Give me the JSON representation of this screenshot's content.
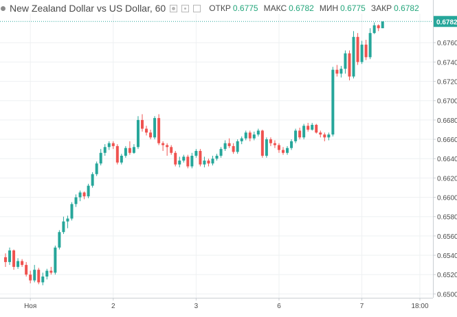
{
  "legend": {
    "symbol": "New Zealand Dollar vs US Dollar, 60",
    "open_label": "ОТКР",
    "open_value": "0.6775",
    "high_label": "МАКС",
    "high_value": "0.6782",
    "low_label": "МИН",
    "low_value": "0.6775",
    "close_label": "ЗАКР",
    "close_value": "0.6782",
    "value_color": "#22a57a"
  },
  "last_price_label": "0.6782",
  "colors": {
    "up": "#26a69a",
    "down": "#ef5350",
    "grid": "#eef0f2",
    "axis_text": "#4a4a4a",
    "price_line": "#26a69a"
  },
  "chart_data": {
    "type": "candlestick",
    "title": "New Zealand Dollar vs US Dollar, 60",
    "ylim": [
      0.6496,
      0.679
    ],
    "yticks": [
      0.65,
      0.652,
      0.654,
      0.656,
      0.658,
      0.66,
      0.662,
      0.664,
      0.666,
      0.668,
      0.67,
      0.672,
      0.674,
      0.676
    ],
    "ytick_labels": [
      "0.6500",
      "0.6520",
      "0.6540",
      "0.6560",
      "0.6580",
      "0.6600",
      "0.6620",
      "0.6640",
      "0.6660",
      "0.6680",
      "0.6700",
      "0.6720",
      "0.6740",
      "0.6760"
    ],
    "x_tick_labels": [
      {
        "index": 6,
        "label": "Ноя"
      },
      {
        "index": 26,
        "label": "2"
      },
      {
        "index": 46,
        "label": "3"
      },
      {
        "index": 66,
        "label": "6"
      },
      {
        "index": 86,
        "label": "7"
      },
      {
        "index": 100,
        "label": "18:00"
      }
    ],
    "grid": true,
    "candles": [
      [
        0.6538,
        0.6542,
        0.6528,
        0.6533
      ],
      [
        0.6533,
        0.6548,
        0.653,
        0.6545
      ],
      [
        0.6545,
        0.6546,
        0.6525,
        0.6528
      ],
      [
        0.6528,
        0.6537,
        0.6526,
        0.6534
      ],
      [
        0.6534,
        0.6536,
        0.6528,
        0.653
      ],
      [
        0.653,
        0.6533,
        0.6518,
        0.652
      ],
      [
        0.652,
        0.6524,
        0.6511,
        0.6514
      ],
      [
        0.6514,
        0.653,
        0.6512,
        0.6525
      ],
      [
        0.6525,
        0.6527,
        0.651,
        0.6512
      ],
      [
        0.6512,
        0.6522,
        0.6509,
        0.6518
      ],
      [
        0.6518,
        0.6526,
        0.6515,
        0.6524
      ],
      [
        0.6524,
        0.6528,
        0.652,
        0.6522
      ],
      [
        0.6522,
        0.655,
        0.652,
        0.6548
      ],
      [
        0.6548,
        0.6566,
        0.6546,
        0.6564
      ],
      [
        0.6564,
        0.658,
        0.6562,
        0.6575
      ],
      [
        0.6575,
        0.6581,
        0.6568,
        0.6578
      ],
      [
        0.6578,
        0.6595,
        0.6576,
        0.6593
      ],
      [
        0.6593,
        0.6603,
        0.659,
        0.66
      ],
      [
        0.66,
        0.6607,
        0.6596,
        0.6605
      ],
      [
        0.6605,
        0.6606,
        0.6598,
        0.6601
      ],
      [
        0.6601,
        0.6614,
        0.6599,
        0.6612
      ],
      [
        0.6612,
        0.6626,
        0.661,
        0.6624
      ],
      [
        0.6624,
        0.6637,
        0.6622,
        0.6635
      ],
      [
        0.6635,
        0.665,
        0.6633,
        0.6646
      ],
      [
        0.6646,
        0.6655,
        0.6643,
        0.6652
      ],
      [
        0.6652,
        0.6658,
        0.6649,
        0.6656
      ],
      [
        0.6656,
        0.6658,
        0.665,
        0.6653
      ],
      [
        0.6653,
        0.6655,
        0.6634,
        0.6636
      ],
      [
        0.6636,
        0.6645,
        0.6634,
        0.6643
      ],
      [
        0.6643,
        0.6653,
        0.6641,
        0.6651
      ],
      [
        0.6651,
        0.6658,
        0.6644,
        0.6646
      ],
      [
        0.6646,
        0.6655,
        0.6645,
        0.6652
      ],
      [
        0.6652,
        0.6684,
        0.665,
        0.668
      ],
      [
        0.668,
        0.6686,
        0.6668,
        0.6671
      ],
      [
        0.6671,
        0.6674,
        0.6664,
        0.6667
      ],
      [
        0.6667,
        0.667,
        0.666,
        0.6662
      ],
      [
        0.6662,
        0.6684,
        0.666,
        0.6682
      ],
      [
        0.6682,
        0.6686,
        0.6654,
        0.6656
      ],
      [
        0.6656,
        0.6658,
        0.6648,
        0.6654
      ],
      [
        0.6654,
        0.6656,
        0.6643,
        0.6652
      ],
      [
        0.6652,
        0.6654,
        0.6644,
        0.6646
      ],
      [
        0.6646,
        0.6648,
        0.6632,
        0.6634
      ],
      [
        0.6634,
        0.6642,
        0.6631,
        0.6638
      ],
      [
        0.6638,
        0.6644,
        0.6636,
        0.6642
      ],
      [
        0.6642,
        0.6644,
        0.663,
        0.6632
      ],
      [
        0.6632,
        0.6646,
        0.663,
        0.6643
      ],
      [
        0.6643,
        0.665,
        0.6641,
        0.6648
      ],
      [
        0.6648,
        0.665,
        0.6632,
        0.6634
      ],
      [
        0.6634,
        0.6642,
        0.6631,
        0.6638
      ],
      [
        0.6638,
        0.664,
        0.6632,
        0.6635
      ],
      [
        0.6635,
        0.6643,
        0.6633,
        0.664
      ],
      [
        0.664,
        0.6645,
        0.6638,
        0.6643
      ],
      [
        0.6643,
        0.6652,
        0.6641,
        0.665
      ],
      [
        0.665,
        0.6659,
        0.6648,
        0.6656
      ],
      [
        0.6656,
        0.6661,
        0.6651,
        0.6653
      ],
      [
        0.6653,
        0.6656,
        0.6645,
        0.6647
      ],
      [
        0.6647,
        0.666,
        0.6645,
        0.6658
      ],
      [
        0.6658,
        0.6663,
        0.6655,
        0.6661
      ],
      [
        0.6661,
        0.6669,
        0.6659,
        0.6667
      ],
      [
        0.6667,
        0.6669,
        0.6658,
        0.6661
      ],
      [
        0.6661,
        0.6668,
        0.6659,
        0.6665
      ],
      [
        0.6665,
        0.6671,
        0.6663,
        0.6669
      ],
      [
        0.6669,
        0.667,
        0.6641,
        0.6643
      ],
      [
        0.6643,
        0.6662,
        0.6641,
        0.666
      ],
      [
        0.666,
        0.6662,
        0.6653,
        0.6656
      ],
      [
        0.6656,
        0.6659,
        0.6651,
        0.6654
      ],
      [
        0.6654,
        0.6656,
        0.6646,
        0.6649
      ],
      [
        0.6649,
        0.6652,
        0.6644,
        0.6646
      ],
      [
        0.6646,
        0.6653,
        0.6644,
        0.6651
      ],
      [
        0.6651,
        0.666,
        0.6649,
        0.6658
      ],
      [
        0.6658,
        0.6671,
        0.6656,
        0.6669
      ],
      [
        0.6669,
        0.6672,
        0.666,
        0.6662
      ],
      [
        0.6662,
        0.6676,
        0.666,
        0.6674
      ],
      [
        0.6674,
        0.6677,
        0.6668,
        0.667
      ],
      [
        0.667,
        0.6677,
        0.6669,
        0.6675
      ],
      [
        0.6675,
        0.6676,
        0.6666,
        0.6667
      ],
      [
        0.6667,
        0.6669,
        0.6662,
        0.6665
      ],
      [
        0.6665,
        0.6667,
        0.6658,
        0.6662
      ],
      [
        0.6662,
        0.6667,
        0.6659,
        0.6665
      ],
      [
        0.6665,
        0.6735,
        0.6663,
        0.6732
      ],
      [
        0.6732,
        0.6737,
        0.6725,
        0.6728
      ],
      [
        0.6728,
        0.6736,
        0.6724,
        0.6733
      ],
      [
        0.6733,
        0.6752,
        0.6728,
        0.6749
      ],
      [
        0.6749,
        0.6752,
        0.6721,
        0.6725
      ],
      [
        0.6725,
        0.6772,
        0.6723,
        0.6766
      ],
      [
        0.6766,
        0.677,
        0.6737,
        0.674
      ],
      [
        0.674,
        0.6762,
        0.6738,
        0.6758
      ],
      [
        0.6758,
        0.6763,
        0.6742,
        0.6745
      ],
      [
        0.6745,
        0.6775,
        0.6743,
        0.677
      ],
      [
        0.677,
        0.6781,
        0.6769,
        0.6778
      ],
      [
        0.6778,
        0.6779,
        0.6772,
        0.6775
      ],
      [
        0.6775,
        0.6782,
        0.6775,
        0.6782
      ]
    ]
  }
}
